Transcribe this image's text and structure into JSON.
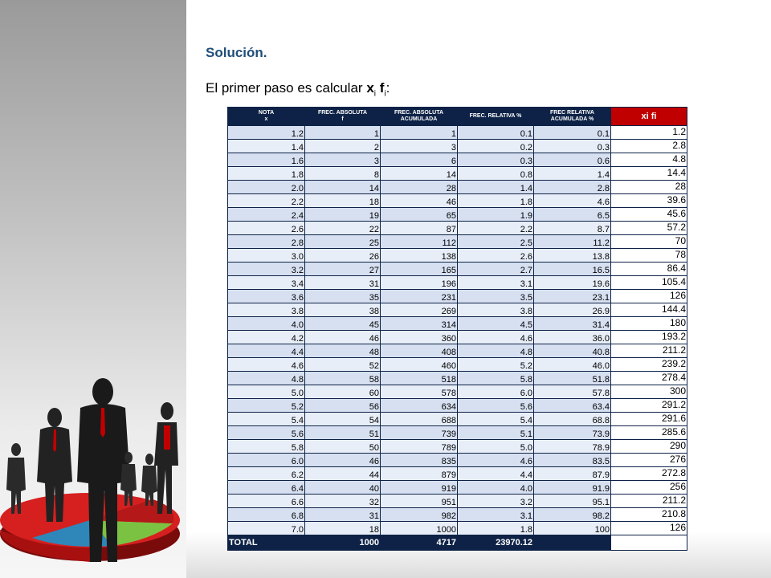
{
  "slide": {
    "title": "Solución.",
    "subtitle_prefix": "El primer paso es calcular ",
    "subtitle_x": "x",
    "subtitle_i1": "i",
    "subtitle_f": "f",
    "subtitle_i2": "i",
    "subtitle_suffix": ":"
  },
  "table": {
    "headers": [
      {
        "line1": "NOTA",
        "line2": "x"
      },
      {
        "line1": "FREC. ABSOLUTA",
        "line2": "f"
      },
      {
        "line1": "FREC. ABSOLUTA",
        "line2": "ACUMULADA"
      },
      {
        "line1": "FREC. RELATIVA %",
        "line2": ""
      },
      {
        "line1": "FREC RELATIVA",
        "line2": "ACUMULADA %"
      },
      {
        "line1": "xi fi",
        "line2": ""
      }
    ],
    "rows": [
      [
        "1.2",
        "1",
        "1",
        "0.1",
        "0.1",
        "1.2"
      ],
      [
        "1.4",
        "2",
        "3",
        "0.2",
        "0.3",
        "2.8"
      ],
      [
        "1.6",
        "3",
        "6",
        "0.3",
        "0.6",
        "4.8"
      ],
      [
        "1.8",
        "8",
        "14",
        "0.8",
        "1.4",
        "14.4"
      ],
      [
        "2.0",
        "14",
        "28",
        "1.4",
        "2.8",
        "28"
      ],
      [
        "2.2",
        "18",
        "46",
        "1.8",
        "4.6",
        "39.6"
      ],
      [
        "2.4",
        "19",
        "65",
        "1.9",
        "6.5",
        "45.6"
      ],
      [
        "2.6",
        "22",
        "87",
        "2.2",
        "8.7",
        "57.2"
      ],
      [
        "2.8",
        "25",
        "112",
        "2.5",
        "11.2",
        "70"
      ],
      [
        "3.0",
        "26",
        "138",
        "2.6",
        "13.8",
        "78"
      ],
      [
        "3.2",
        "27",
        "165",
        "2.7",
        "16.5",
        "86.4"
      ],
      [
        "3.4",
        "31",
        "196",
        "3.1",
        "19.6",
        "105.4"
      ],
      [
        "3.6",
        "35",
        "231",
        "3.5",
        "23.1",
        "126"
      ],
      [
        "3.8",
        "38",
        "269",
        "3.8",
        "26.9",
        "144.4"
      ],
      [
        "4.0",
        "45",
        "314",
        "4.5",
        "31.4",
        "180"
      ],
      [
        "4.2",
        "46",
        "360",
        "4.6",
        "36.0",
        "193.2"
      ],
      [
        "4.4",
        "48",
        "408",
        "4.8",
        "40.8",
        "211.2"
      ],
      [
        "4.6",
        "52",
        "460",
        "5.2",
        "46.0",
        "239.2"
      ],
      [
        "4.8",
        "58",
        "518",
        "5.8",
        "51.8",
        "278.4"
      ],
      [
        "5.0",
        "60",
        "578",
        "6.0",
        "57.8",
        "300"
      ],
      [
        "5.2",
        "56",
        "634",
        "5.6",
        "63.4",
        "291.2"
      ],
      [
        "5.4",
        "54",
        "688",
        "5.4",
        "68.8",
        "291.6"
      ],
      [
        "5.6",
        "51",
        "739",
        "5.1",
        "73.9",
        "285.6"
      ],
      [
        "5.8",
        "50",
        "789",
        "5.0",
        "78.9",
        "290"
      ],
      [
        "6.0",
        "46",
        "835",
        "4.6",
        "83.5",
        "276"
      ],
      [
        "6.2",
        "44",
        "879",
        "4.4",
        "87.9",
        "272.8"
      ],
      [
        "6.4",
        "40",
        "919",
        "4.0",
        "91.9",
        "256"
      ],
      [
        "6.6",
        "32",
        "951",
        "3.2",
        "95.1",
        "211.2"
      ],
      [
        "6.8",
        "31",
        "982",
        "3.1",
        "98.2",
        "210.8"
      ],
      [
        "7.0",
        "18",
        "1000",
        "1.8",
        "100",
        "126"
      ]
    ],
    "total": [
      "TOTAL",
      "1000",
      "4717",
      "23970.12",
      "",
      ""
    ]
  },
  "colors": {
    "header_bg": "#0d2246",
    "highlight_header": "#c00000",
    "row_fill": "#d7e0f1",
    "title_color": "#1f4e79"
  },
  "illustration": {
    "icon": "business-people-pie-chart-icon"
  }
}
